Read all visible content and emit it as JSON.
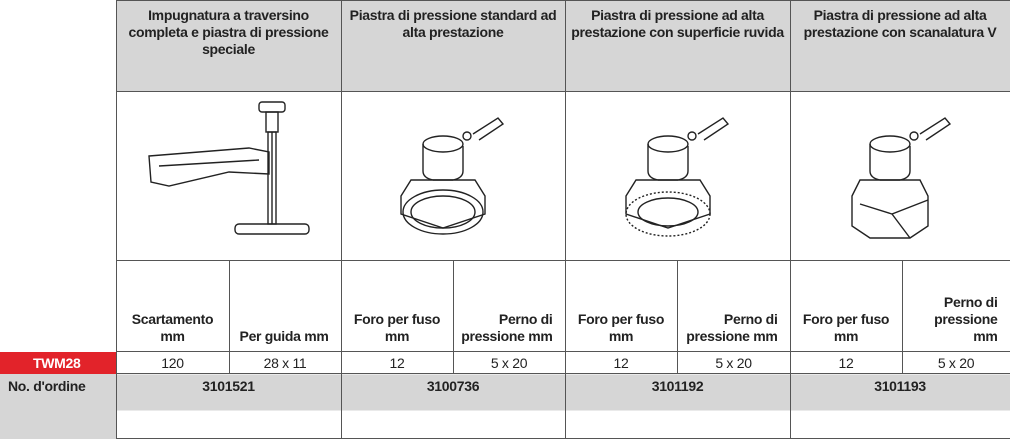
{
  "header": {
    "columns": [
      "Impugnatura a traversino completa e piastra di pressione speciale",
      "Piastra di pressione standard ad alta prestazione",
      "Piastra di pressione ad alta prestazione con superficie ruvida",
      "Piastra di pressione ad alta prestazione con scanalatura V"
    ]
  },
  "subheader": {
    "cells": [
      "Scartamento mm",
      "Per guida mm",
      "Foro per fuso mm",
      "Perno di pressione mm",
      "Foro per fuso mm",
      "Perno di pressione mm",
      "Foro per fuso mm",
      "Perno di pressione mm"
    ]
  },
  "table": {
    "rows": [
      {
        "label": "TWM28",
        "cells": [
          120,
          "28 x 11",
          12,
          "5 x 20",
          12,
          "5 x 20",
          12,
          "5 x 20"
        ]
      },
      {
        "label": "No. d'ordine",
        "cells": [
          3101521,
          3100736,
          3101192,
          3101193
        ]
      }
    ]
  }
}
